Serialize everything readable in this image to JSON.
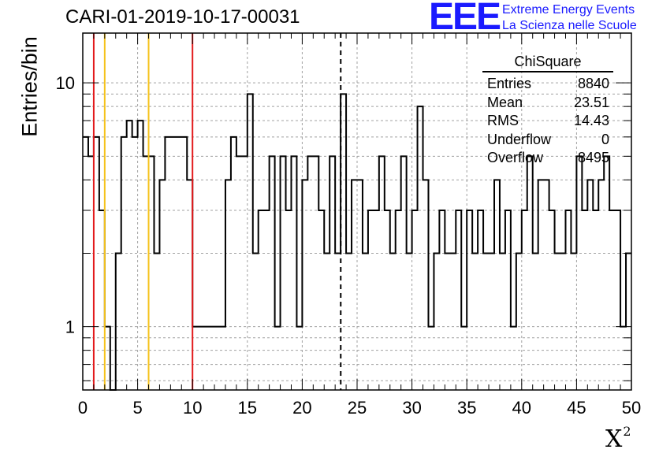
{
  "header": {
    "title": "CARI-01-2019-10-17-00031",
    "logo_text": "EEE",
    "logo_line1": "Extreme Energy Events",
    "logo_line2": "La Scienza nelle Scuole"
  },
  "stats": {
    "title": "ChiSquare",
    "rows": [
      {
        "label": "Entries",
        "value": "8840"
      },
      {
        "label": "Mean",
        "value": "23.51"
      },
      {
        "label": "RMS",
        "value": "14.43"
      },
      {
        "label": "Underflow",
        "value": "0"
      },
      {
        "label": "Overflow",
        "value": "8495"
      }
    ]
  },
  "colors": {
    "red_line": "#e31a1c",
    "yellow_line": "#f5c21b",
    "histogram": "#000000",
    "grid": "#a0a0a0",
    "logo": "#1a1aff"
  },
  "chart_data": {
    "type": "histogram",
    "title": "CARI-01-2019-10-17-00031",
    "xlabel": "X",
    "xlabel_superscript": "2",
    "ylabel": "Entries/bin",
    "xlim": [
      0,
      50
    ],
    "ylim": [
      0.55,
      16
    ],
    "yscale": "log",
    "grid": true,
    "x_ticks": [
      0,
      5,
      10,
      15,
      20,
      25,
      30,
      35,
      40,
      45,
      50
    ],
    "y_tick_labels": [
      1,
      10
    ],
    "bin_width": 0.5,
    "bin_counts": [
      6,
      5,
      6,
      3,
      1,
      0,
      2,
      6,
      7,
      6,
      7,
      5,
      5,
      2,
      4,
      6,
      6,
      6,
      6,
      4,
      1,
      1,
      1,
      1,
      1,
      1,
      4,
      6,
      5,
      5,
      9,
      2,
      3,
      3,
      5,
      1,
      5,
      3,
      5,
      1,
      4,
      5,
      5,
      3,
      2,
      5,
      2,
      9,
      2,
      4,
      4,
      2,
      3,
      3,
      5,
      3,
      2,
      3,
      5,
      2,
      3,
      8,
      4,
      1,
      2,
      3,
      2,
      2,
      3,
      1,
      3,
      2,
      3,
      2,
      2,
      4,
      2,
      3,
      1,
      2,
      3,
      5,
      2,
      4,
      4,
      3,
      2,
      2,
      3,
      2,
      5,
      3,
      4,
      3,
      4,
      5,
      3,
      3,
      1,
      2
    ],
    "vertical_lines": [
      {
        "x": 1,
        "style": "red"
      },
      {
        "x": 2,
        "style": "yellow"
      },
      {
        "x": 6,
        "style": "yellow"
      },
      {
        "x": 10,
        "style": "red"
      },
      {
        "x": 23.51,
        "style": "dashed-black"
      }
    ]
  }
}
